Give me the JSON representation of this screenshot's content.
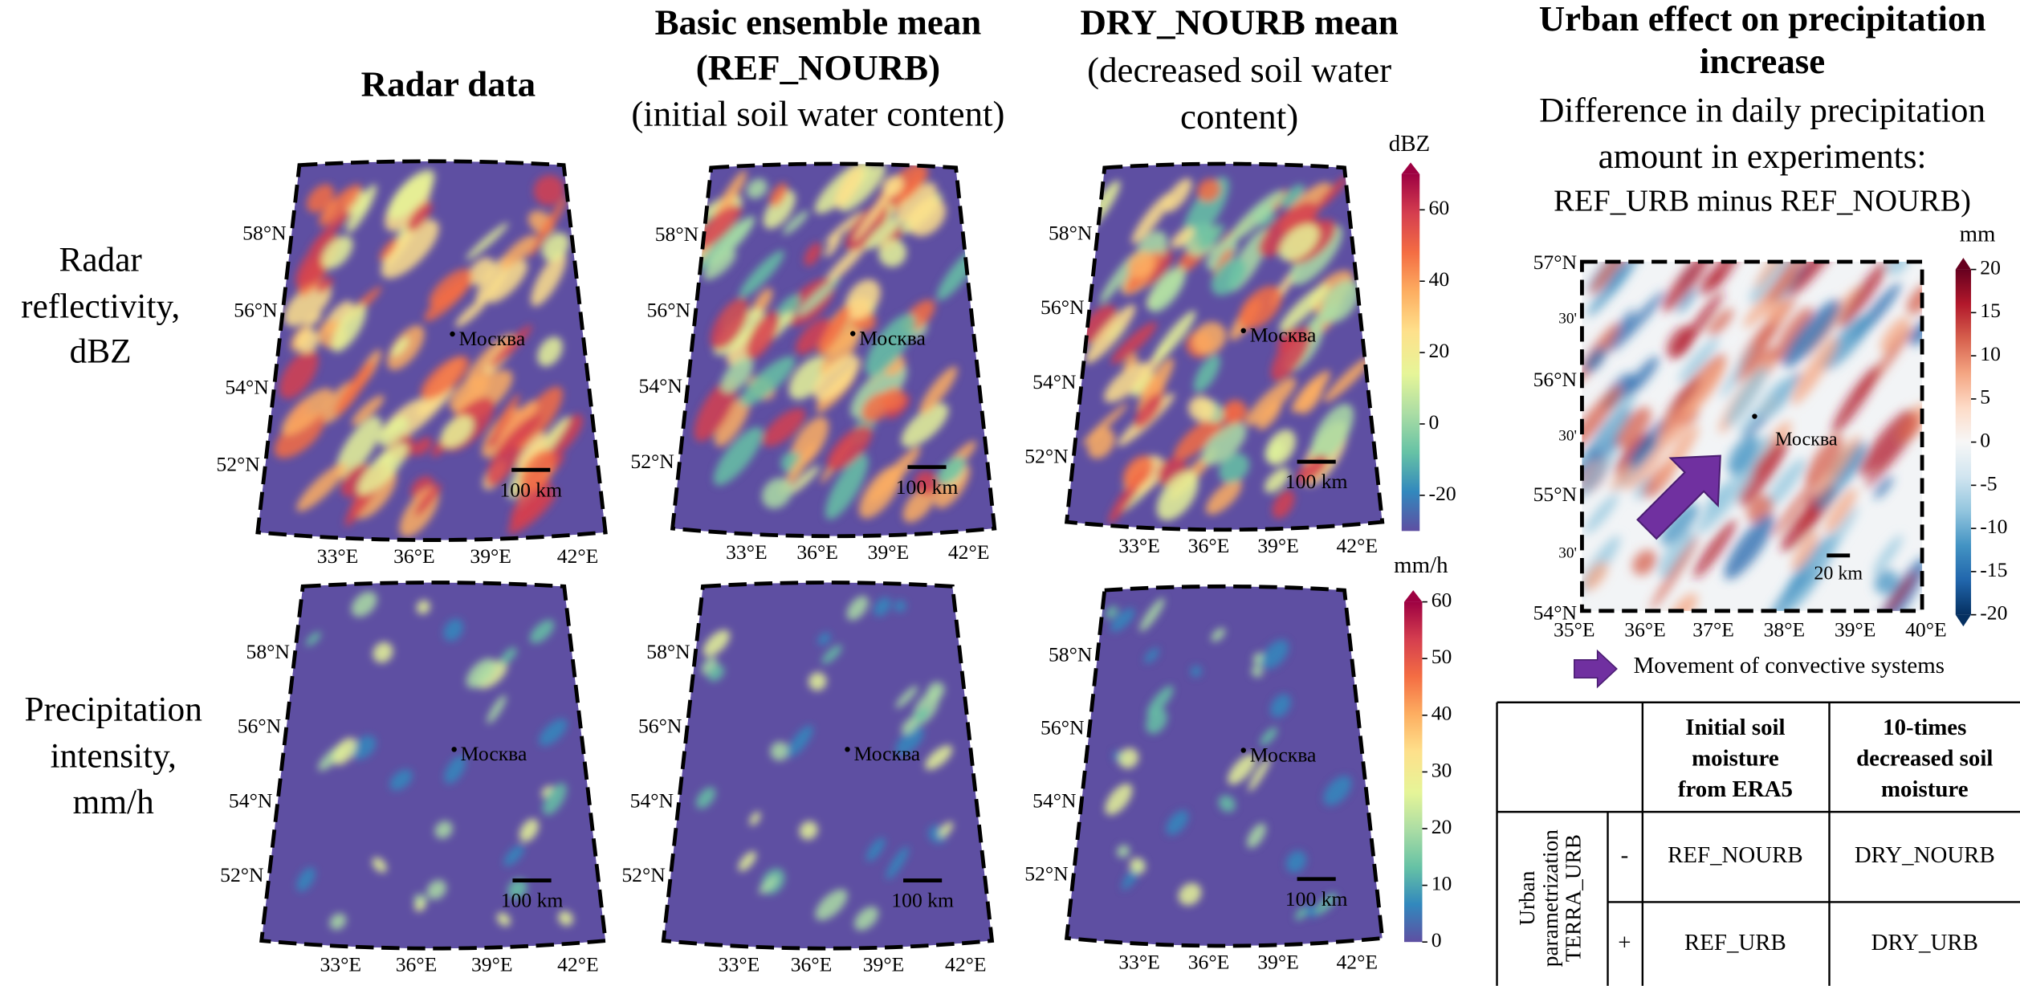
{
  "column_titles": [
    [
      "Radar data"
    ],
    [
      "Basic ensemble mean",
      "(REF_NOURB)",
      "(initial soil water content)"
    ],
    [
      "DRY_NOURB mean",
      "(decreased soil water",
      "content)"
    ]
  ],
  "row_labels": [
    [
      "Radar",
      "reflectivity,",
      "dBZ"
    ],
    [
      "Precipitation",
      "intensity,",
      "mm/h"
    ]
  ],
  "maps": [
    {
      "lat_labels": [
        "58°N",
        "56°N",
        "54°N",
        "52°N"
      ],
      "lon_labels": [
        "33°E",
        "36°E",
        "39°E",
        "42°E"
      ],
      "city": "Москва",
      "scale_bar": "100 km"
    },
    {
      "lat_labels": [
        "58°N",
        "56°N",
        "54°N",
        "52°N"
      ],
      "lon_labels": [
        "33°E",
        "36°E",
        "39°E",
        "42°E"
      ],
      "city": "Москва",
      "scale_bar": "100 km"
    },
    {
      "lat_labels": [
        "58°N",
        "56°N",
        "54°N",
        "52°N"
      ],
      "lon_labels": [
        "33°E",
        "36°E",
        "39°E",
        "42°E"
      ],
      "city": "Москва",
      "scale_bar": "100 km"
    },
    {
      "lat_labels": [
        "58°N",
        "56°N",
        "54°N",
        "52°N"
      ],
      "lon_labels": [
        "33°E",
        "36°E",
        "39°E",
        "42°E"
      ],
      "city": "Москва",
      "scale_bar": "100 km"
    },
    {
      "lat_labels": [
        "58°N",
        "56°N",
        "54°N",
        "52°N"
      ],
      "lon_labels": [
        "33°E",
        "36°E",
        "39°E",
        "42°E"
      ],
      "city": "Москва",
      "scale_bar": "100 km"
    },
    {
      "lat_labels": [
        "58°N",
        "56°N",
        "54°N",
        "52°N"
      ],
      "lon_labels": [
        "33°E",
        "36°E",
        "39°E",
        "42°E"
      ],
      "city": "Москва",
      "scale_bar": "100 km"
    }
  ],
  "colorbars": [
    {
      "unit": "dBZ",
      "lim": [
        -30,
        70
      ],
      "ticks": [
        -20,
        0,
        20,
        40,
        60
      ]
    },
    {
      "unit": "mm/h",
      "lim": [
        0,
        60
      ],
      "ticks": [
        0,
        10,
        20,
        30,
        40,
        50,
        60
      ]
    }
  ],
  "urban_panel": {
    "title": [
      "Urban effect on precipitation",
      "increase"
    ],
    "subtitle": [
      "Difference in daily precipitation",
      "amount in experiments:",
      "REF_URB minus REF_NOURB)"
    ],
    "colorbar": {
      "unit": "mm",
      "lim": [
        -20,
        20
      ],
      "ticks": [
        -20,
        -15,
        -10,
        -5,
        0,
        5,
        10,
        15,
        20
      ]
    },
    "lat_labels": [
      "57°N",
      "30'",
      "56°N",
      "30'",
      "55°N",
      "30'",
      "54°N"
    ],
    "lon_labels": [
      "35°E",
      "36°E",
      "37°E",
      "38°E",
      "39°E",
      "40°E"
    ],
    "city": "Москва",
    "scale_bar": "20 km",
    "legend": "Movement of convective systems"
  },
  "table": {
    "header": [
      [
        "Initial soil",
        "moisture",
        "from ERA5"
      ],
      [
        "10-times",
        "decreased soil",
        "moisture"
      ]
    ],
    "row_group": [
      "Urban",
      "parametrization",
      "TERRA_URB"
    ],
    "rows": [
      {
        "sign": "-",
        "cells": [
          "REF_NOURB",
          "DRY_NOURB"
        ]
      },
      {
        "sign": "+",
        "cells": [
          "REF_URB",
          "DRY_URB"
        ]
      }
    ]
  }
}
